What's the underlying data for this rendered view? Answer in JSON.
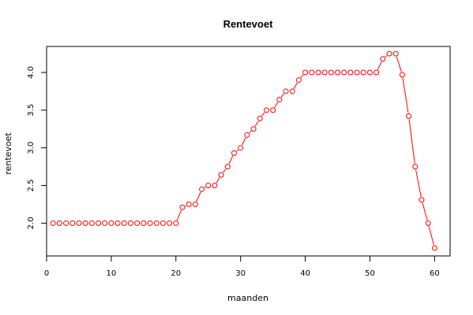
{
  "chart_data": {
    "type": "line",
    "title": "Rentevoet",
    "xlabel": "maanden",
    "ylabel": "rentevoet",
    "xlim": [
      0,
      62.4
    ],
    "ylim": [
      1.565,
      4.345
    ],
    "xticks": [
      0,
      10,
      20,
      30,
      40,
      50,
      60
    ],
    "yticks": [
      2.0,
      2.5,
      3.0,
      3.5,
      4.0
    ],
    "grid": false,
    "legend": "none",
    "style": "overplotted points and line",
    "color": "#ff0000",
    "series": [
      {
        "x": [
          1,
          2,
          3,
          4,
          5,
          6,
          7,
          8,
          9,
          10,
          11,
          12,
          13,
          14,
          15,
          16,
          17,
          18,
          19,
          20,
          21,
          22,
          23,
          24,
          25,
          26,
          27,
          28,
          29,
          30,
          31,
          32,
          33,
          34,
          35,
          36,
          37,
          38,
          39,
          40,
          41,
          42,
          43,
          44,
          45,
          46,
          47,
          48,
          49,
          50,
          51,
          52,
          53,
          54,
          55,
          56,
          57,
          58,
          59,
          60
        ],
        "values": [
          2.0,
          2.0,
          2.0,
          2.0,
          2.0,
          2.0,
          2.0,
          2.0,
          2.0,
          2.0,
          2.0,
          2.0,
          2.0,
          2.0,
          2.0,
          2.0,
          2.0,
          2.0,
          2.0,
          2.0,
          2.21,
          2.25,
          2.25,
          2.45,
          2.5,
          2.5,
          2.64,
          2.75,
          2.93,
          3.0,
          3.17,
          3.25,
          3.39,
          3.5,
          3.5,
          3.64,
          3.75,
          3.75,
          3.9,
          4.0,
          4.0,
          4.0,
          4.0,
          4.0,
          4.0,
          4.0,
          4.0,
          4.0,
          4.0,
          4.0,
          4.0,
          4.18,
          4.25,
          4.25,
          3.97,
          3.42,
          2.75,
          2.31,
          2.0,
          1.67
        ]
      }
    ]
  }
}
